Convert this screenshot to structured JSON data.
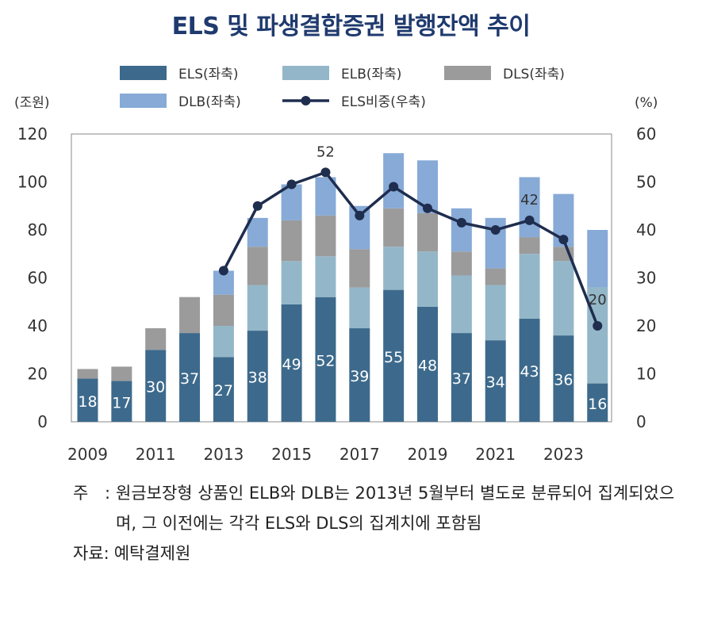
{
  "title": "ELS 및 파생결합증권 발행잔액 추이",
  "chart_data": {
    "type": "bar",
    "stacked": true,
    "title": "ELS 및 파생결합증권 발행잔액 추이",
    "left_unit": "(조원)",
    "right_unit": "(%)",
    "ylim": [
      0,
      120
    ],
    "y_ticks": [
      0,
      20,
      40,
      60,
      80,
      100,
      120
    ],
    "y2lim": [
      0,
      60
    ],
    "y2_ticks": [
      0,
      10,
      20,
      30,
      40,
      50,
      60
    ],
    "years": [
      2009,
      2010,
      2011,
      2012,
      2013,
      2014,
      2015,
      2016,
      2017,
      2018,
      2019,
      2020,
      2021,
      2022,
      2023,
      2024
    ],
    "x_tick_labels": [
      "2009",
      "2011",
      "2013",
      "2015",
      "2017",
      "2019",
      "2021",
      "2023"
    ],
    "legend_position": "top",
    "series": [
      {
        "name": "ELS(좌축)",
        "color": "#3d6a8c",
        "values": [
          18,
          17,
          30,
          37,
          27,
          38,
          49,
          52,
          39,
          55,
          48,
          37,
          34,
          43,
          36,
          16
        ]
      },
      {
        "name": "ELB(좌축)",
        "color": "#93b7c8",
        "values": [
          0,
          0,
          0,
          0,
          13,
          19,
          18,
          17,
          17,
          18,
          23,
          24,
          23,
          27,
          31,
          40
        ]
      },
      {
        "name": "DLS(좌축)",
        "color": "#9b9b9c",
        "values": [
          4,
          6,
          9,
          15,
          13,
          16,
          17,
          17,
          16,
          16,
          16,
          10,
          7,
          7,
          6,
          0
        ]
      },
      {
        "name": "DLB(좌축)",
        "color": "#87aad7",
        "values": [
          0,
          0,
          0,
          0,
          10,
          12,
          15,
          16,
          18,
          23,
          22,
          18,
          21,
          25,
          22,
          24
        ]
      }
    ],
    "line": {
      "name": "ELS비중(우축)",
      "color": "#1f2d4e",
      "axis": "right",
      "values": [
        null,
        null,
        null,
        null,
        31.5,
        45,
        49.5,
        52,
        43,
        49,
        44.5,
        41.5,
        40,
        42,
        38,
        20
      ]
    },
    "bar_labels": [
      "18",
      "17",
      "30",
      "37",
      "27",
      "38",
      "49",
      "52",
      "39",
      "55",
      "48",
      "37",
      "34",
      "43",
      "36",
      "16"
    ],
    "line_labels": [
      {
        "year": 2016,
        "text": "52"
      },
      {
        "year": 2022,
        "text": "42"
      },
      {
        "year": 2024,
        "text": "20"
      }
    ]
  },
  "notes": {
    "mark": "주",
    "colon": ":",
    "text": "원금보장형 상품인 ELB와 DLB는 2013년 5월부터 별도로 분류되어 집계되었으며, 그 이전에는 각각 ELS와 DLS의 집계치에 포함됨",
    "source_label": "자료:",
    "source_text": "예탁결제원"
  }
}
